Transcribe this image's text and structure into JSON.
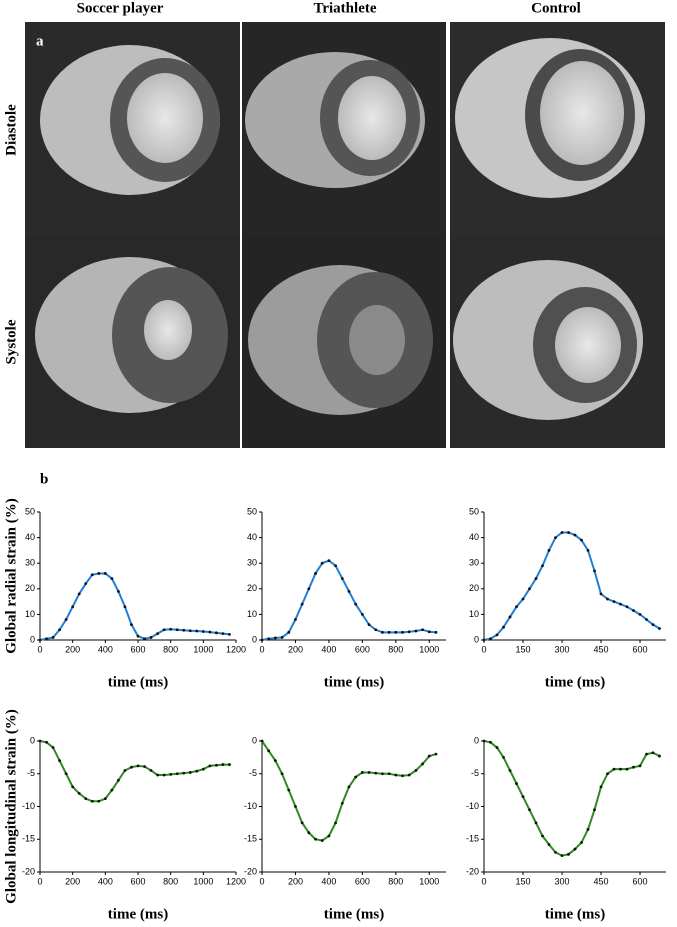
{
  "figure": {
    "columns": [
      "Soccer player",
      "Triathlete",
      "Control"
    ],
    "rows": [
      "Diastole",
      "Systole"
    ],
    "panel_a": "a",
    "panel_b": "b"
  },
  "chart_data": [
    {
      "type": "line",
      "ylabel": "Global radial strain (%)",
      "xlabel": "time (ms)",
      "color": "#1f7fd8",
      "x": [
        0,
        40,
        80,
        120,
        160,
        200,
        240,
        280,
        320,
        360,
        400,
        440,
        480,
        520,
        560,
        600,
        640,
        680,
        720,
        760,
        800,
        840,
        880,
        920,
        960,
        1000,
        1040,
        1080,
        1120,
        1160
      ],
      "values": [
        0,
        0.5,
        1,
        4,
        8,
        13,
        18,
        22,
        25.5,
        26,
        26,
        24,
        19,
        13,
        6,
        1.5,
        0.5,
        1,
        2.5,
        4,
        4.2,
        4,
        3.8,
        3.6,
        3.5,
        3.3,
        3.1,
        2.8,
        2.5,
        2.2
      ],
      "xlim": [
        0,
        1200
      ],
      "ylim": [
        0,
        50
      ],
      "xticks": [
        0,
        200,
        400,
        600,
        800,
        1000,
        1200
      ],
      "yticks": [
        0,
        10,
        20,
        30,
        40,
        50
      ]
    },
    {
      "type": "line",
      "xlabel": "time (ms)",
      "color": "#1f7fd8",
      "x": [
        0,
        40,
        80,
        120,
        160,
        200,
        240,
        280,
        320,
        360,
        400,
        440,
        480,
        520,
        560,
        600,
        640,
        680,
        720,
        760,
        800,
        840,
        880,
        920,
        960,
        1000,
        1040
      ],
      "values": [
        0,
        0.5,
        0.8,
        1,
        3,
        8,
        14,
        20,
        26,
        30,
        31,
        29,
        24,
        19,
        14,
        10,
        6,
        4,
        3,
        3,
        3,
        3,
        3.2,
        3.5,
        4,
        3.2,
        3
      ],
      "xlim": [
        0,
        1100
      ],
      "ylim": [
        0,
        50
      ],
      "xticks": [
        0,
        200,
        400,
        600,
        800,
        1000
      ],
      "yticks": [
        0,
        10,
        20,
        30,
        40,
        50
      ]
    },
    {
      "type": "line",
      "xlabel": "time (ms)",
      "color": "#1f7fd8",
      "x": [
        0,
        25,
        50,
        75,
        100,
        125,
        150,
        175,
        200,
        225,
        250,
        275,
        300,
        325,
        350,
        375,
        400,
        425,
        450,
        475,
        500,
        525,
        550,
        575,
        600,
        625,
        650,
        675
      ],
      "values": [
        0,
        0.5,
        2,
        5,
        9,
        13,
        16,
        20,
        24,
        29,
        35,
        40,
        42,
        42,
        41,
        39,
        35,
        27,
        18,
        16,
        15,
        14,
        13,
        11.5,
        10,
        8,
        6,
        4.5
      ],
      "xlim": [
        0,
        700
      ],
      "ylim": [
        0,
        50
      ],
      "xticks": [
        0,
        150,
        300,
        450,
        600
      ],
      "yticks": [
        0,
        10,
        20,
        30,
        40,
        50
      ]
    },
    {
      "type": "line",
      "ylabel": "Global longitudinal strain (%)",
      "xlabel": "time (ms)",
      "color": "#2e8b1f",
      "x": [
        0,
        40,
        80,
        120,
        160,
        200,
        240,
        280,
        320,
        360,
        400,
        440,
        480,
        520,
        560,
        600,
        640,
        680,
        720,
        760,
        800,
        840,
        880,
        920,
        960,
        1000,
        1040,
        1080,
        1120,
        1160
      ],
      "values": [
        0,
        -0.2,
        -1,
        -3,
        -5,
        -7,
        -8,
        -8.8,
        -9.2,
        -9.2,
        -8.8,
        -7.5,
        -6,
        -4.5,
        -4,
        -3.8,
        -3.9,
        -4.5,
        -5.2,
        -5.2,
        -5.1,
        -5,
        -4.9,
        -4.8,
        -4.6,
        -4.3,
        -3.8,
        -3.7,
        -3.6,
        -3.6
      ],
      "xlim": [
        0,
        1200
      ],
      "ylim": [
        -20,
        0
      ],
      "xticks": [
        0,
        200,
        400,
        600,
        800,
        1000,
        1200
      ],
      "yticks": [
        0,
        -5,
        -10,
        -15,
        -20
      ]
    },
    {
      "type": "line",
      "xlabel": "time (ms)",
      "color": "#2e8b1f",
      "x": [
        0,
        40,
        80,
        120,
        160,
        200,
        240,
        280,
        320,
        360,
        400,
        440,
        480,
        520,
        560,
        600,
        640,
        680,
        720,
        760,
        800,
        840,
        880,
        920,
        960,
        1000,
        1040
      ],
      "values": [
        0,
        -1.5,
        -3,
        -5,
        -7.5,
        -10,
        -12.5,
        -14,
        -15,
        -15.2,
        -14.5,
        -12.5,
        -9.5,
        -7,
        -5.5,
        -4.8,
        -4.8,
        -4.9,
        -5,
        -5,
        -5.2,
        -5.3,
        -5.2,
        -4.5,
        -3.5,
        -2.3,
        -2
      ],
      "xlim": [
        0,
        1100
      ],
      "ylim": [
        -20,
        0
      ],
      "xticks": [
        0,
        200,
        400,
        600,
        800,
        1000
      ],
      "yticks": [
        0,
        -5,
        -10,
        -15,
        -20
      ]
    },
    {
      "type": "line",
      "xlabel": "time (ms)",
      "color": "#2e8b1f",
      "x": [
        0,
        25,
        50,
        75,
        100,
        125,
        150,
        175,
        200,
        225,
        250,
        275,
        300,
        325,
        350,
        375,
        400,
        425,
        450,
        475,
        500,
        525,
        550,
        575,
        600,
        625,
        650,
        675
      ],
      "values": [
        0,
        -0.2,
        -1,
        -2.5,
        -4.5,
        -6.5,
        -8.5,
        -10.5,
        -12.5,
        -14.5,
        -15.8,
        -17,
        -17.5,
        -17.3,
        -16.5,
        -15.5,
        -13.5,
        -10.5,
        -7,
        -5,
        -4.3,
        -4.3,
        -4.3,
        -4,
        -3.8,
        -2,
        -1.8,
        -2.3
      ],
      "xlim": [
        0,
        700
      ],
      "ylim": [
        -20,
        0
      ],
      "xticks": [
        0,
        150,
        300,
        450,
        600
      ],
      "yticks": [
        0,
        -5,
        -10,
        -15,
        -20
      ]
    }
  ]
}
